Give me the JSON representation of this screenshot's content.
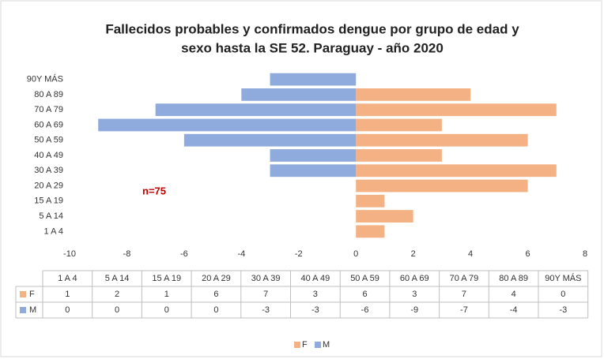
{
  "chart_data": {
    "type": "bar",
    "orientation": "horizontal",
    "title": "Fallecidos probables y confirmados dengue por grupo de edad y sexo hasta la SE 52. Paraguay - año 2020",
    "annotation": "n=75",
    "categories": [
      "1 A 4",
      "5 A 14",
      "15 A 19",
      "20 A 29",
      "30 A 39",
      "40 A 49",
      "50 A 59",
      "60 A 69",
      "70 A 79",
      "80 A 89",
      "90Y MÁS"
    ],
    "series": [
      {
        "name": "F",
        "color": "#f4b183",
        "values": [
          1,
          2,
          1,
          6,
          7,
          3,
          6,
          3,
          7,
          4,
          0
        ]
      },
      {
        "name": "M",
        "color": "#8faadc",
        "values": [
          0,
          0,
          0,
          0,
          -3,
          -3,
          -6,
          -9,
          -7,
          -4,
          -3
        ]
      }
    ],
    "xlim": [
      -10,
      8
    ],
    "xticks": [
      -10,
      -8,
      -6,
      -4,
      -2,
      0,
      2,
      4,
      6,
      8
    ],
    "grid": false,
    "legend": "bottom",
    "data_table": true
  }
}
